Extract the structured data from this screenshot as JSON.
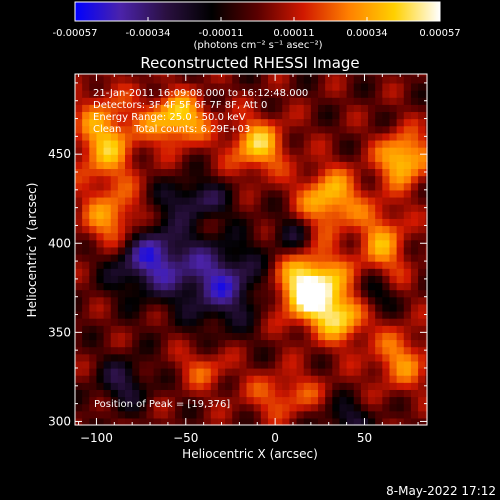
{
  "chart_data": {
    "type": "heatmap",
    "title": "Reconstructed RHESSI Image",
    "xlabel": "Heliocentric X (arcsec)",
    "ylabel": "Heliocentric Y (arcsec)",
    "xlim": [
      -112,
      85
    ],
    "ylim": [
      298,
      495
    ],
    "xticks": [
      -100,
      -50,
      0,
      50
    ],
    "yticks": [
      300,
      350,
      400,
      450
    ],
    "colorbar": {
      "ticks": [
        "-0.00057",
        "-0.00034",
        "-0.00011",
        "0.00011",
        "0.00034",
        "0.00057"
      ],
      "unit_label": "(photons cm⁻² s⁻¹ asec⁻²)",
      "range": [
        -0.00057,
        0.00057
      ],
      "stops": [
        "#0000ff",
        "#4b23aa",
        "#2a1040",
        "#000000",
        "#5a0000",
        "#d01800",
        "#ff8000",
        "#ffd000",
        "#ffffff"
      ]
    },
    "annotations": [
      "21-Jan-2011 16:09:08.000 to 16:12:48.000",
      "Detectors: 3F 4F 5F 6F 7F 8F, Att 0",
      "Energy Range: 25.0 - 50.0 keV",
      "Clean    Total counts: 6.29E+03"
    ],
    "peak_label": "Position of Peak = [19,376]",
    "peak": [
      19,
      376
    ],
    "sources": [
      {
        "x": 20,
        "y": 375,
        "sx": 13,
        "sy": 13,
        "amp": 1.3
      },
      {
        "x": 38,
        "y": 358,
        "sx": 10,
        "sy": 10,
        "amp": 0.7
      },
      {
        "x": 72,
        "y": 448,
        "sx": 10,
        "sy": 10,
        "amp": 0.9
      },
      {
        "x": -10,
        "y": 455,
        "sx": 11,
        "sy": 11,
        "amp": 0.8
      },
      {
        "x": -55,
        "y": 470,
        "sx": 12,
        "sy": 10,
        "amp": 0.9
      },
      {
        "x": -95,
        "y": 458,
        "sx": 12,
        "sy": 18,
        "amp": 0.75
      },
      {
        "x": -90,
        "y": 412,
        "sx": 12,
        "sy": 12,
        "amp": 0.7
      },
      {
        "x": 30,
        "y": 425,
        "sx": 12,
        "sy": 12,
        "amp": 0.8
      },
      {
        "x": 60,
        "y": 400,
        "sx": 10,
        "sy": 16,
        "amp": 0.6
      },
      {
        "x": 70,
        "y": 335,
        "sx": 12,
        "sy": 12,
        "amp": 0.55
      },
      {
        "x": 5,
        "y": 315,
        "sx": 16,
        "sy": 9,
        "amp": 0.45
      },
      {
        "x": -40,
        "y": 330,
        "sx": 10,
        "sy": 8,
        "amp": 0.4
      },
      {
        "x": -70,
        "y": 392,
        "sx": 16,
        "sy": 14,
        "amp": -0.9
      },
      {
        "x": -30,
        "y": 378,
        "sx": 16,
        "sy": 16,
        "amp": -0.8
      },
      {
        "x": -45,
        "y": 425,
        "sx": 14,
        "sy": 8,
        "amp": -0.55
      },
      {
        "x": 55,
        "y": 372,
        "sx": 8,
        "sy": 8,
        "amp": -0.5
      },
      {
        "x": 10,
        "y": 405,
        "sx": 8,
        "sy": 8,
        "amp": -0.4
      },
      {
        "x": -85,
        "y": 322,
        "sx": 10,
        "sy": 10,
        "amp": -0.5
      },
      {
        "x": 40,
        "y": 302,
        "sx": 10,
        "sy": 8,
        "amp": -0.45
      }
    ]
  },
  "timestamp": "8-May-2022 17:12"
}
